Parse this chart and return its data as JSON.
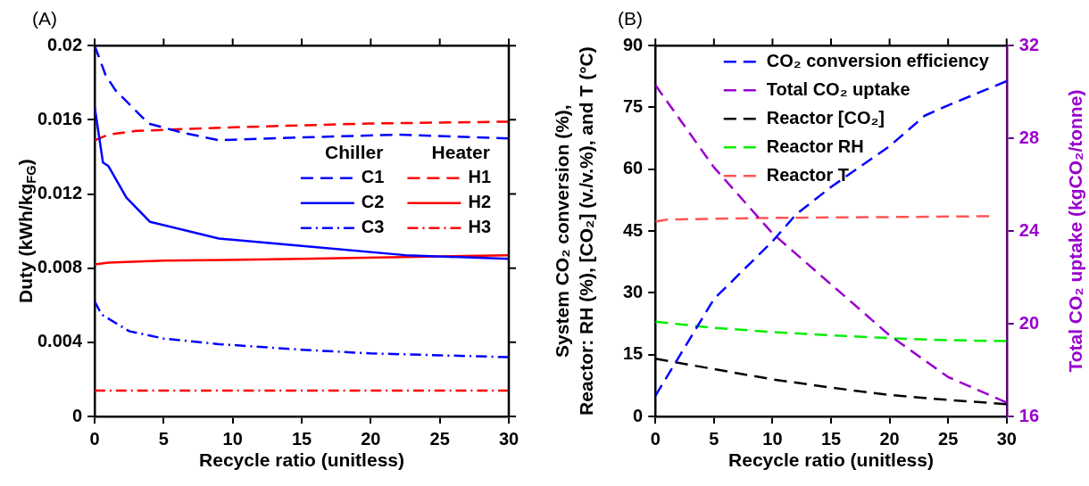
{
  "chart_data": [
    {
      "type": "line",
      "title": "(A)",
      "xlabel": "Recycle ratio (unitless)",
      "ylabel": "Duty (kWh/kg$_{FG}$)",
      "xlim": [
        0,
        30
      ],
      "xticks": [
        0,
        5,
        10,
        15,
        20,
        25,
        30
      ],
      "ylim": [
        0,
        0.02
      ],
      "yticks": [
        0,
        0.004,
        0.008,
        0.012,
        0.016,
        0.02
      ],
      "grid": false,
      "legend": "right",
      "marker": "none",
      "annotations": [
        "Chiller",
        "Heater"
      ],
      "series": [
        {
          "name": "C1",
          "color": "#0000ff",
          "line_style": "dashed",
          "x": [
            0,
            0.8,
            1.5,
            3.9,
            6.4,
            9,
            15,
            22,
            30
          ],
          "values": [
            0.02,
            0.0184,
            0.0176,
            0.0158,
            0.0153,
            0.0149,
            0.01505,
            0.0152,
            0.015
          ]
        },
        {
          "name": "C2",
          "color": "#0000ff",
          "line_style": "solid",
          "x": [
            0,
            0.6,
            1,
            2.3,
            4,
            9,
            15,
            22.5,
            30
          ],
          "values": [
            0.0167,
            0.0137,
            0.0135,
            0.0118,
            0.0105,
            0.0096,
            0.0092,
            0.0087,
            0.0085
          ]
        },
        {
          "name": "C3",
          "color": "#0000ff",
          "line_style": "dotted",
          "x": [
            0,
            0.5,
            2.5,
            5,
            9,
            15,
            20,
            25,
            30
          ],
          "values": [
            0.0062,
            0.0055,
            0.0046,
            0.0042,
            0.0039,
            0.0036,
            0.0034,
            0.0033,
            0.0032
          ]
        },
        {
          "name": "H1",
          "color": "#ff0000",
          "line_style": "dashed",
          "x": [
            0,
            1,
            3,
            10,
            20,
            30
          ],
          "values": [
            0.0149,
            0.0152,
            0.0154,
            0.0156,
            0.0158,
            0.0159
          ]
        },
        {
          "name": "H2",
          "color": "#ff0000",
          "line_style": "solid",
          "x": [
            0,
            1,
            5,
            15,
            30
          ],
          "values": [
            0.0082,
            0.0083,
            0.0084,
            0.0085,
            0.0087
          ]
        },
        {
          "name": "H3",
          "color": "#ff0000",
          "line_style": "dotted",
          "x": [
            0,
            30
          ],
          "values": [
            0.0014,
            0.0014
          ]
        }
      ]
    },
    {
      "type": "line",
      "title": "(B)",
      "xlabel": "Recycle ratio (unitless)",
      "ylabel": "System CO₂ conversion (%),\nReactor: RH (%), [CO₂] (v./v.%), and T (°C)",
      "y2label": "Total CO₂ uptake (kgCO₂/tonne)",
      "xlim": [
        0,
        30
      ],
      "xticks": [
        0,
        5,
        10,
        15,
        20,
        25,
        30
      ],
      "ylim": [
        0,
        90
      ],
      "yticks": [
        0,
        15,
        30,
        45,
        60,
        75,
        90
      ],
      "y2lim": [
        16,
        32
      ],
      "y2ticks": [
        16,
        20,
        24,
        28,
        32
      ],
      "grid": false,
      "legend": "top right",
      "marker": "none",
      "line_style": "dashed",
      "series": [
        {
          "name": "CO₂ conversion efficiency",
          "color": "#0000ff",
          "x": [
            0,
            1.7,
            5,
            10,
            12,
            15,
            20,
            23,
            25,
            30
          ],
          "values": [
            5,
            13,
            28.5,
            42.5,
            49,
            55.7,
            65.6,
            73,
            75.5,
            81.4
          ]
        },
        {
          "name": "Total CO₂ uptake",
          "color": "#9900cc",
          "axis": "y2",
          "x": [
            0,
            5,
            10,
            15,
            20,
            25,
            30
          ],
          "values": [
            30.3,
            26.75,
            23.9,
            21.7,
            19.5,
            17.7,
            16.6
          ]
        },
        {
          "name": "Reactor [CO₂]",
          "color": "#000000",
          "x": [
            0,
            5,
            10,
            15,
            20,
            25,
            30
          ],
          "values": [
            14,
            11.5,
            9,
            7,
            5.2,
            4,
            3
          ]
        },
        {
          "name": "Reactor RH",
          "color": "#00ee00",
          "x": [
            0,
            5,
            10,
            15,
            20,
            25,
            30
          ],
          "values": [
            23,
            21.5,
            20.5,
            19.7,
            19,
            18.5,
            18.3
          ]
        },
        {
          "name": "Reactor T",
          "color": "#ff5555",
          "x": [
            0,
            1,
            10,
            20,
            28.5
          ],
          "values": [
            47.3,
            47.8,
            48.2,
            48.4,
            48.6
          ]
        }
      ]
    }
  ]
}
